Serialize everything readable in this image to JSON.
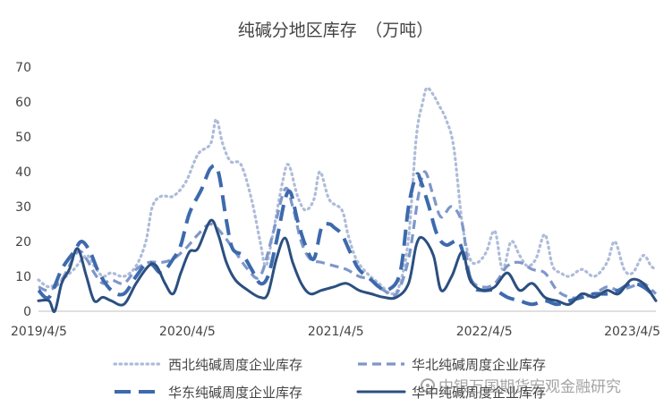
{
  "chart_data": {
    "type": "line",
    "title": "纯碱分地区库存　（万吨）",
    "ylim": [
      0,
      70
    ],
    "yticks": [
      0,
      10,
      20,
      30,
      40,
      50,
      60,
      70
    ],
    "xlim": [
      "2019-04-05",
      "2023-06-01"
    ],
    "xtick_labels": [
      "2019/4/5",
      "2020/4/5",
      "2021/4/5",
      "2022/4/5",
      "2023/4/5"
    ],
    "xtick_dates": [
      "2019-04-05",
      "2020-04-05",
      "2021-04-05",
      "2022-04-05",
      "2023-04-05"
    ],
    "grid": false,
    "legend_position": "bottom",
    "series": [
      {
        "name": "西北纯碱周度企业库存",
        "color": "#aebbd9",
        "style": "dotted",
        "points": [
          [
            "2019-04-05",
            9
          ],
          [
            "2019-05-01",
            7
          ],
          [
            "2019-06-01",
            9
          ],
          [
            "2019-07-01",
            12
          ],
          [
            "2019-08-01",
            16
          ],
          [
            "2019-08-20",
            13
          ],
          [
            "2019-09-10",
            10
          ],
          [
            "2019-10-01",
            11
          ],
          [
            "2019-11-01",
            10
          ],
          [
            "2019-12-01",
            13
          ],
          [
            "2019-12-25",
            20
          ],
          [
            "2020-01-10",
            30
          ],
          [
            "2020-02-01",
            33
          ],
          [
            "2020-03-01",
            33
          ],
          [
            "2020-04-01",
            37
          ],
          [
            "2020-05-01",
            45
          ],
          [
            "2020-06-01",
            48
          ],
          [
            "2020-06-15",
            55
          ],
          [
            "2020-07-01",
            48
          ],
          [
            "2020-07-20",
            43
          ],
          [
            "2020-08-15",
            42
          ],
          [
            "2020-09-10",
            32
          ],
          [
            "2020-10-01",
            20
          ],
          [
            "2020-10-15",
            13
          ],
          [
            "2020-11-01",
            22
          ],
          [
            "2020-11-25",
            37
          ],
          [
            "2020-12-10",
            42
          ],
          [
            "2021-01-01",
            33
          ],
          [
            "2021-01-20",
            29
          ],
          [
            "2021-02-10",
            32
          ],
          [
            "2021-02-25",
            40
          ],
          [
            "2021-03-20",
            32
          ],
          [
            "2021-04-20",
            29
          ],
          [
            "2021-05-05",
            22
          ],
          [
            "2021-05-25",
            15
          ],
          [
            "2021-06-20",
            11
          ],
          [
            "2021-07-20",
            8
          ],
          [
            "2021-08-20",
            5
          ],
          [
            "2021-09-10",
            8
          ],
          [
            "2021-10-01",
            21
          ],
          [
            "2021-10-20",
            50
          ],
          [
            "2021-11-05",
            60
          ],
          [
            "2021-11-15",
            64
          ],
          [
            "2021-12-01",
            62
          ],
          [
            "2021-12-15",
            59
          ],
          [
            "2022-01-01",
            55
          ],
          [
            "2022-01-20",
            47
          ],
          [
            "2022-02-10",
            25
          ],
          [
            "2022-03-01",
            15
          ],
          [
            "2022-03-20",
            14
          ],
          [
            "2022-04-10",
            17
          ],
          [
            "2022-05-01",
            23
          ],
          [
            "2022-05-20",
            12
          ],
          [
            "2022-06-10",
            20
          ],
          [
            "2022-07-01",
            16
          ],
          [
            "2022-07-20",
            13
          ],
          [
            "2022-08-10",
            15
          ],
          [
            "2022-09-01",
            22
          ],
          [
            "2022-09-20",
            13
          ],
          [
            "2022-10-10",
            11
          ],
          [
            "2022-11-01",
            10
          ],
          [
            "2022-12-01",
            12
          ],
          [
            "2023-01-01",
            10
          ],
          [
            "2023-02-01",
            14
          ],
          [
            "2023-02-20",
            20
          ],
          [
            "2023-03-15",
            12
          ],
          [
            "2023-04-05",
            11
          ],
          [
            "2023-05-01",
            16
          ],
          [
            "2023-05-20",
            13
          ],
          [
            "2023-06-01",
            12
          ]
        ]
      },
      {
        "name": "华北纯碱周度企业库存",
        "color": "#7e97c9",
        "style": "dashed",
        "points": [
          [
            "2019-04-05",
            7
          ],
          [
            "2019-05-01",
            6
          ],
          [
            "2019-06-01",
            9
          ],
          [
            "2019-07-10",
            17
          ],
          [
            "2019-08-01",
            15
          ],
          [
            "2019-08-20",
            11
          ],
          [
            "2019-09-10",
            8
          ],
          [
            "2019-10-01",
            9
          ],
          [
            "2019-11-01",
            8
          ],
          [
            "2019-12-01",
            12
          ],
          [
            "2020-01-01",
            14
          ],
          [
            "2020-02-01",
            14
          ],
          [
            "2020-03-01",
            15
          ],
          [
            "2020-04-01",
            18
          ],
          [
            "2020-05-01",
            22
          ],
          [
            "2020-06-01",
            25
          ],
          [
            "2020-07-01",
            22
          ],
          [
            "2020-08-01",
            17
          ],
          [
            "2020-09-01",
            12
          ],
          [
            "2020-10-01",
            10
          ],
          [
            "2020-11-01",
            22
          ],
          [
            "2020-12-01",
            35
          ],
          [
            "2020-12-20",
            30
          ],
          [
            "2021-01-10",
            20
          ],
          [
            "2021-02-01",
            15
          ],
          [
            "2021-03-01",
            14
          ],
          [
            "2021-04-01",
            13
          ],
          [
            "2021-05-01",
            12
          ],
          [
            "2021-06-01",
            10
          ],
          [
            "2021-07-01",
            9
          ],
          [
            "2021-08-01",
            6
          ],
          [
            "2021-09-01",
            5
          ],
          [
            "2021-10-01",
            15
          ],
          [
            "2021-10-25",
            33
          ],
          [
            "2021-11-10",
            40
          ],
          [
            "2021-12-01",
            33
          ],
          [
            "2021-12-20",
            27
          ],
          [
            "2022-01-15",
            30
          ],
          [
            "2022-02-10",
            25
          ],
          [
            "2022-03-01",
            10
          ],
          [
            "2022-04-01",
            7
          ],
          [
            "2022-05-01",
            8
          ],
          [
            "2022-06-01",
            13
          ],
          [
            "2022-07-01",
            14
          ],
          [
            "2022-08-01",
            12
          ],
          [
            "2022-09-01",
            11
          ],
          [
            "2022-10-01",
            6
          ],
          [
            "2022-11-01",
            4
          ],
          [
            "2022-12-01",
            4
          ],
          [
            "2023-01-01",
            5
          ],
          [
            "2023-02-01",
            7
          ],
          [
            "2023-03-01",
            6
          ],
          [
            "2023-04-01",
            7
          ],
          [
            "2023-05-01",
            8
          ],
          [
            "2023-06-01",
            5
          ]
        ]
      },
      {
        "name": "华东纯碱周度企业库存",
        "color": "#3d6aad",
        "style": "longdash",
        "points": [
          [
            "2019-04-05",
            6
          ],
          [
            "2019-05-01",
            4
          ],
          [
            "2019-06-01",
            12
          ],
          [
            "2019-07-01",
            17
          ],
          [
            "2019-07-20",
            20
          ],
          [
            "2019-08-10",
            17
          ],
          [
            "2019-09-01",
            11
          ],
          [
            "2019-10-01",
            6
          ],
          [
            "2019-11-01",
            5
          ],
          [
            "2019-12-01",
            10
          ],
          [
            "2020-01-01",
            14
          ],
          [
            "2020-02-01",
            11
          ],
          [
            "2020-03-01",
            15
          ],
          [
            "2020-03-20",
            19
          ],
          [
            "2020-04-10",
            28
          ],
          [
            "2020-05-10",
            35
          ],
          [
            "2020-06-01",
            41
          ],
          [
            "2020-06-20",
            40
          ],
          [
            "2020-07-10",
            26
          ],
          [
            "2020-07-25",
            18
          ],
          [
            "2020-08-20",
            16
          ],
          [
            "2020-09-10",
            12
          ],
          [
            "2020-10-01",
            8
          ],
          [
            "2020-10-20",
            10
          ],
          [
            "2020-11-10",
            20
          ],
          [
            "2020-12-01",
            32
          ],
          [
            "2020-12-15",
            34
          ],
          [
            "2021-01-01",
            26
          ],
          [
            "2021-01-20",
            19
          ],
          [
            "2021-02-10",
            15
          ],
          [
            "2021-03-01",
            24
          ],
          [
            "2021-03-20",
            25
          ],
          [
            "2021-04-01",
            24
          ],
          [
            "2021-04-20",
            22
          ],
          [
            "2021-05-10",
            17
          ],
          [
            "2021-06-01",
            12
          ],
          [
            "2021-07-01",
            9
          ],
          [
            "2021-07-20",
            7
          ],
          [
            "2021-08-10",
            6
          ],
          [
            "2021-09-10",
            11
          ],
          [
            "2021-10-01",
            30
          ],
          [
            "2021-10-20",
            39
          ],
          [
            "2021-11-01",
            37
          ],
          [
            "2021-11-20",
            30
          ],
          [
            "2021-12-10",
            22
          ],
          [
            "2022-01-01",
            19
          ],
          [
            "2022-02-01",
            20
          ],
          [
            "2022-02-20",
            13
          ],
          [
            "2022-03-10",
            7
          ],
          [
            "2022-04-01",
            6
          ],
          [
            "2022-05-01",
            6
          ],
          [
            "2022-06-01",
            4
          ],
          [
            "2022-07-01",
            3
          ],
          [
            "2022-08-01",
            2
          ],
          [
            "2022-09-01",
            3
          ],
          [
            "2022-10-01",
            2
          ],
          [
            "2022-11-01",
            3
          ],
          [
            "2022-12-01",
            4
          ],
          [
            "2023-01-01",
            5
          ],
          [
            "2023-02-01",
            5
          ],
          [
            "2023-03-01",
            6
          ],
          [
            "2023-04-01",
            8
          ],
          [
            "2023-05-01",
            7
          ],
          [
            "2023-06-01",
            4
          ]
        ]
      },
      {
        "name": "华中纯碱周度企业库存",
        "color": "#2b4f80",
        "style": "solid",
        "points": [
          [
            "2019-04-05",
            3
          ],
          [
            "2019-05-01",
            3
          ],
          [
            "2019-05-15",
            0
          ],
          [
            "2019-06-01",
            8
          ],
          [
            "2019-06-20",
            12
          ],
          [
            "2019-07-10",
            18
          ],
          [
            "2019-08-01",
            10
          ],
          [
            "2019-08-20",
            3
          ],
          [
            "2019-09-10",
            4
          ],
          [
            "2019-10-01",
            3
          ],
          [
            "2019-11-01",
            2
          ],
          [
            "2019-12-01",
            8
          ],
          [
            "2020-01-01",
            13
          ],
          [
            "2020-01-20",
            13
          ],
          [
            "2020-02-10",
            8
          ],
          [
            "2020-03-01",
            5
          ],
          [
            "2020-03-20",
            11
          ],
          [
            "2020-04-10",
            17
          ],
          [
            "2020-05-01",
            18
          ],
          [
            "2020-06-01",
            26
          ],
          [
            "2020-06-20",
            22
          ],
          [
            "2020-07-10",
            14
          ],
          [
            "2020-08-01",
            9
          ],
          [
            "2020-09-01",
            6
          ],
          [
            "2020-10-01",
            4
          ],
          [
            "2020-10-20",
            5
          ],
          [
            "2020-11-10",
            15
          ],
          [
            "2020-12-01",
            21
          ],
          [
            "2020-12-20",
            14
          ],
          [
            "2021-01-10",
            8
          ],
          [
            "2021-02-01",
            5
          ],
          [
            "2021-03-01",
            6
          ],
          [
            "2021-04-01",
            7
          ],
          [
            "2021-05-01",
            8
          ],
          [
            "2021-06-01",
            6
          ],
          [
            "2021-07-01",
            5
          ],
          [
            "2021-08-01",
            4
          ],
          [
            "2021-09-01",
            4
          ],
          [
            "2021-10-01",
            8
          ],
          [
            "2021-10-20",
            19
          ],
          [
            "2021-11-05",
            21
          ],
          [
            "2021-12-01",
            16
          ],
          [
            "2021-12-20",
            6
          ],
          [
            "2022-01-15",
            10
          ],
          [
            "2022-02-10",
            17
          ],
          [
            "2022-03-01",
            9
          ],
          [
            "2022-04-01",
            6
          ],
          [
            "2022-05-01",
            7
          ],
          [
            "2022-06-01",
            11
          ],
          [
            "2022-07-01",
            6
          ],
          [
            "2022-08-01",
            8
          ],
          [
            "2022-09-01",
            4
          ],
          [
            "2022-10-01",
            3
          ],
          [
            "2022-11-01",
            2
          ],
          [
            "2022-12-01",
            5
          ],
          [
            "2023-01-01",
            4
          ],
          [
            "2023-02-01",
            6
          ],
          [
            "2023-03-01",
            5
          ],
          [
            "2023-04-01",
            9
          ],
          [
            "2023-05-01",
            8
          ],
          [
            "2023-06-01",
            3
          ]
        ]
      }
    ]
  },
  "watermark": {
    "text": "中银万国期货宏观金融研究"
  }
}
